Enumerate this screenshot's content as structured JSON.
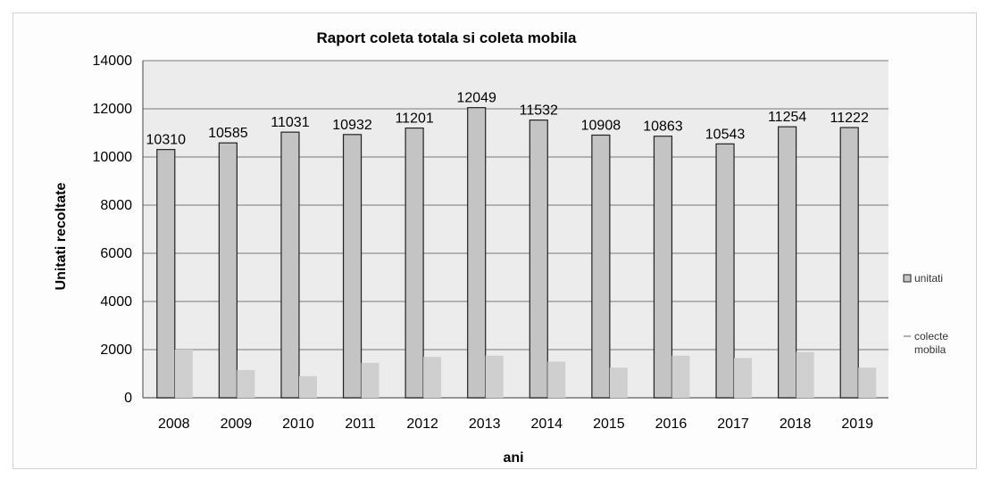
{
  "chart_data": {
    "type": "bar",
    "title": "Raport coleta totala si coleta mobila",
    "xlabel": "ani",
    "ylabel": "Unitati recoltate",
    "categories": [
      "2008",
      "2009",
      "2010",
      "2011",
      "2012",
      "2013",
      "2014",
      "2015",
      "2016",
      "2017",
      "2018",
      "2019"
    ],
    "series": [
      {
        "name": "unitati",
        "values": [
          10310,
          10585,
          11031,
          10932,
          11201,
          12049,
          11532,
          10908,
          10863,
          10543,
          11254,
          11222
        ],
        "data_labels": [
          "10310",
          "10585",
          "11031",
          "10932",
          "11201",
          "12049",
          "11532",
          "10908",
          "10863",
          "10543",
          "11254",
          "11222"
        ],
        "color": "#c4c4c4"
      },
      {
        "name": "colecte mobila",
        "values": [
          2000,
          1150,
          900,
          1450,
          1700,
          1750,
          1500,
          1250,
          1750,
          1650,
          1900,
          1250
        ],
        "color": "#cfcfcf"
      }
    ],
    "ylim": [
      0,
      14000
    ],
    "yticks": [
      "0",
      "2000",
      "4000",
      "6000",
      "8000",
      "10000",
      "12000",
      "14000"
    ],
    "grid": true,
    "legend_position": "right",
    "colors": {
      "plot_background": "#ececec",
      "gridline": "#777777",
      "bar_outline": "#222222"
    }
  }
}
